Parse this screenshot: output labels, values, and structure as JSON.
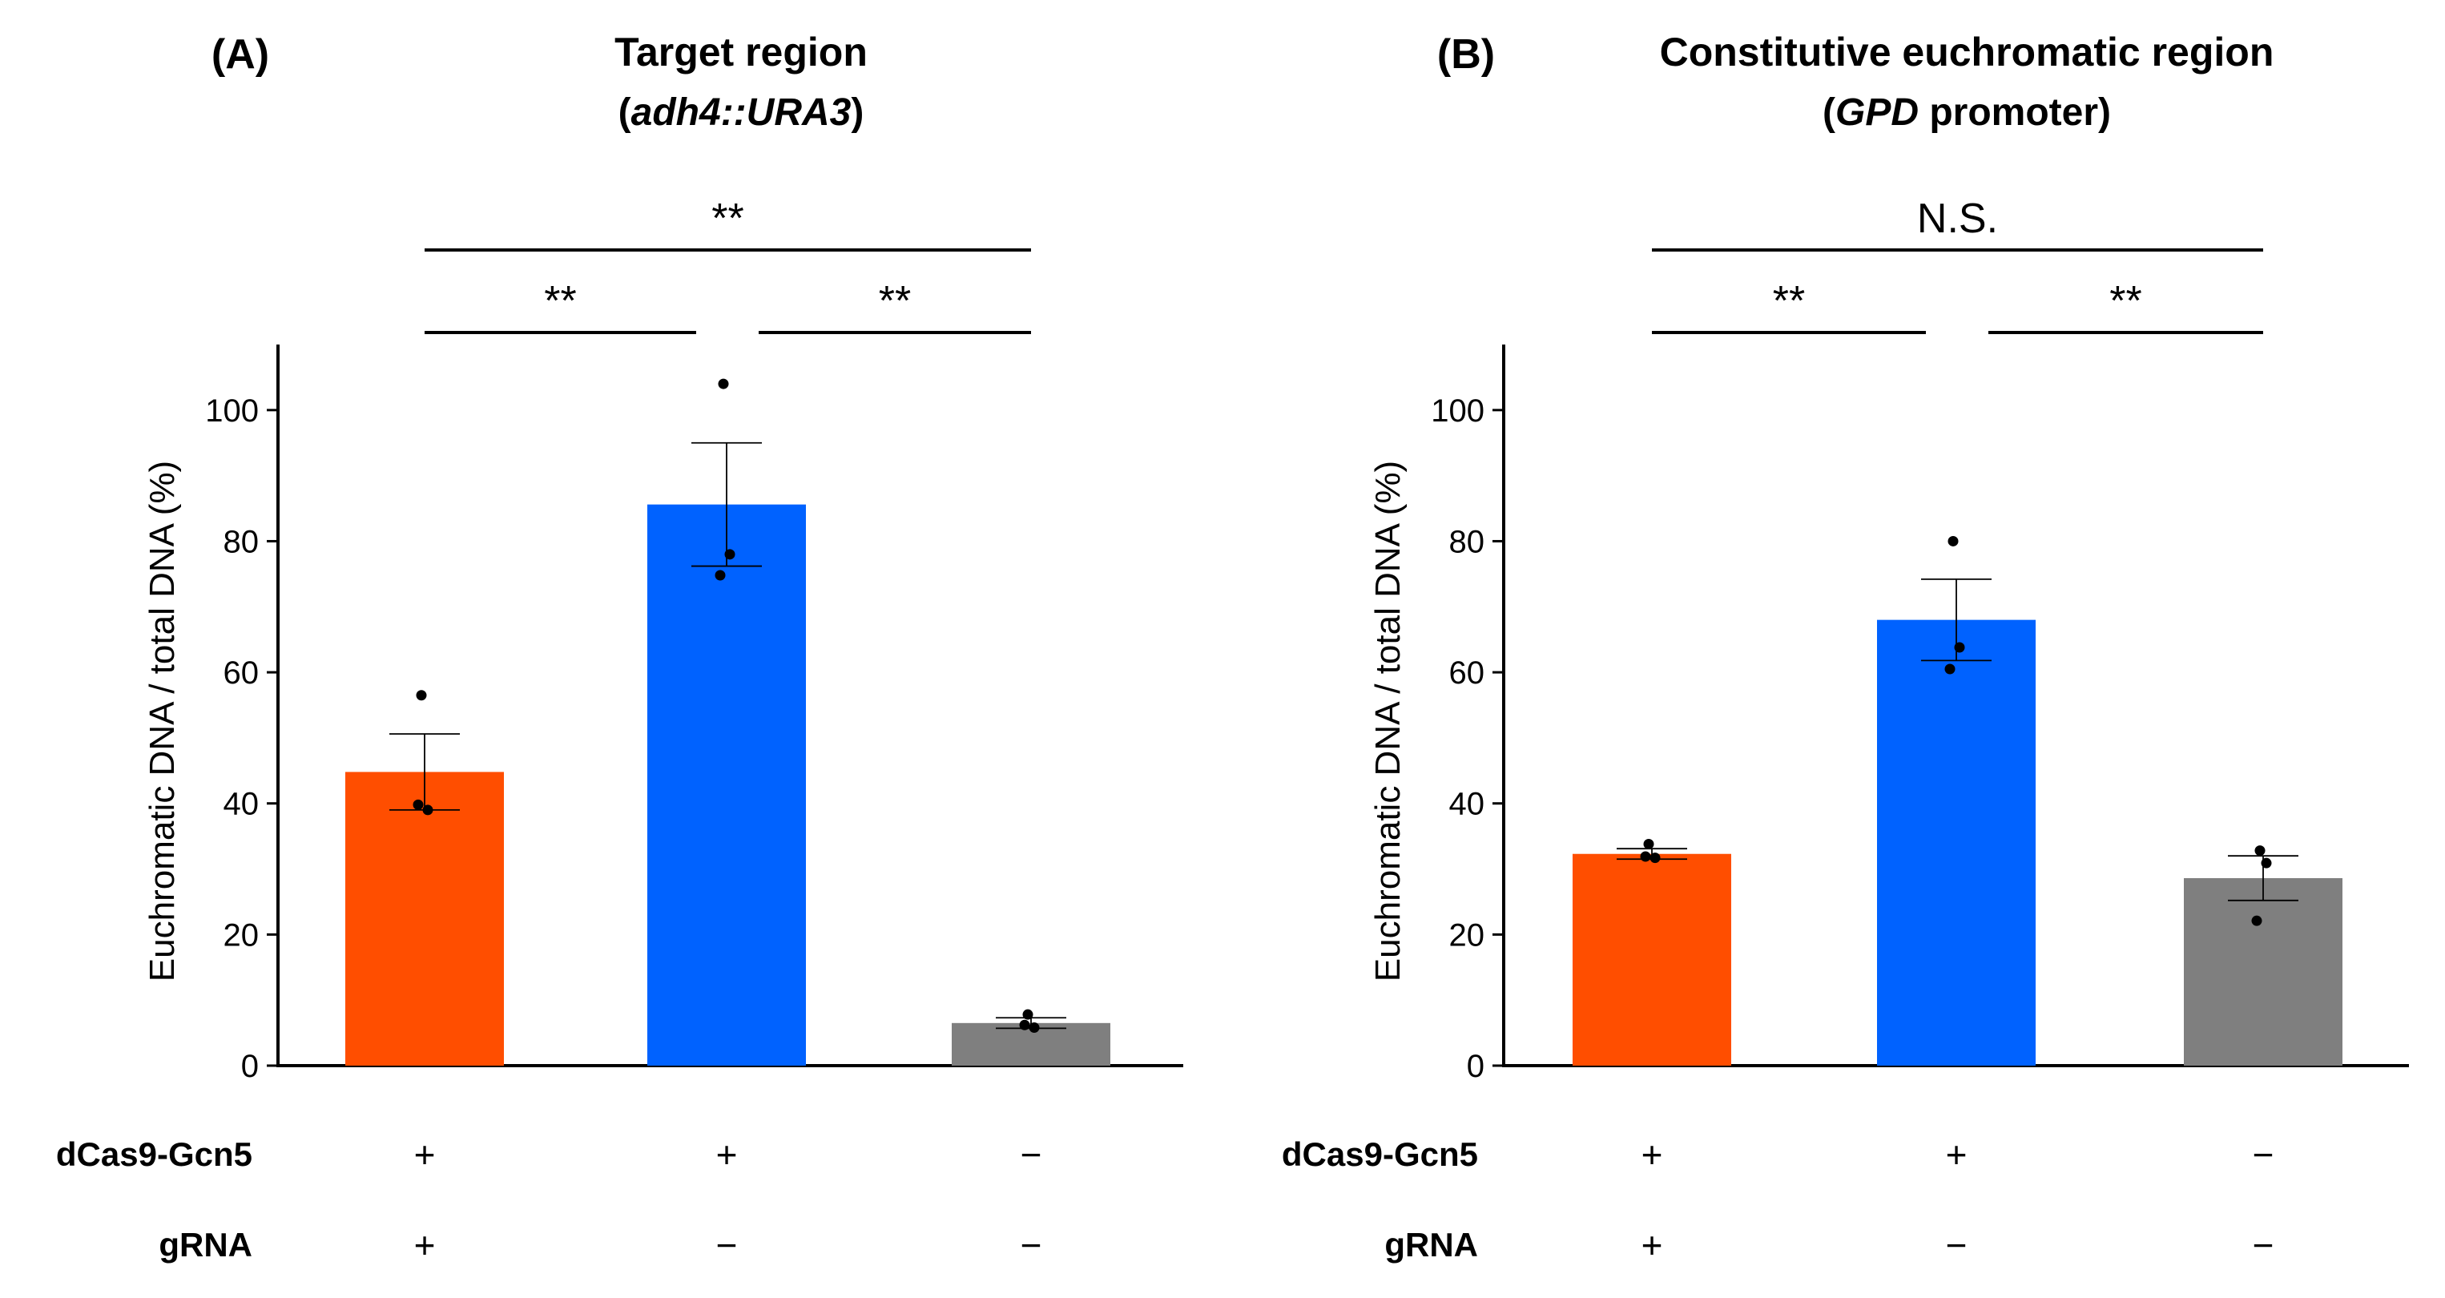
{
  "figure": {
    "background": "#ffffff",
    "colors": {
      "orange": "#ff4e00",
      "blue": "#0062ff",
      "gray": "#7f7f7f",
      "axis": "#000000",
      "error_bar": "#000000"
    }
  },
  "chart_data": [
    {
      "type": "bar",
      "panel_letter": "(A)",
      "title": "Target region",
      "subtitle_open": "(",
      "subtitle_italic": "adh4::URA3",
      "subtitle_close": ")",
      "ylabel": "Euchromatic DNA / total DNA (%)",
      "ylim": [
        0,
        110
      ],
      "yticks": [
        "0",
        "20",
        "40",
        "60",
        "80",
        "100"
      ],
      "grid": false,
      "categories": [
        "dCas9-Gcn5 + / gRNA +",
        "dCas9-Gcn5 + / gRNA −",
        "dCas9-Gcn5 − / gRNA −"
      ],
      "values": [
        44.8,
        85.6,
        6.5
      ],
      "error": [
        5.8,
        9.4,
        0.8
      ],
      "bar_colors": [
        "#ff4e00",
        "#0062ff",
        "#7f7f7f"
      ],
      "points": [
        [
          56.5,
          39.0,
          39.8
        ],
        [
          104.0,
          78.0,
          74.8
        ],
        [
          7.8,
          5.8,
          6.2
        ]
      ],
      "significance": [
        {
          "from": 0,
          "to": 1,
          "label": "**",
          "level": 1
        },
        {
          "from": 1,
          "to": 2,
          "label": "**",
          "level": 1
        },
        {
          "from": 0,
          "to": 2,
          "label": "**",
          "level": 2
        }
      ]
    },
    {
      "type": "bar",
      "panel_letter": "(B)",
      "title": "Constitutive euchromatic region",
      "subtitle_open": "(",
      "subtitle_italic": "GPD",
      "subtitle_close": " promoter)",
      "ylabel": "Euchromatic DNA / total DNA (%)",
      "ylim": [
        0,
        110
      ],
      "yticks": [
        "0",
        "20",
        "40",
        "60",
        "80",
        "100"
      ],
      "grid": false,
      "categories": [
        "dCas9-Gcn5 + / gRNA +",
        "dCas9-Gcn5 + / gRNA −",
        "dCas9-Gcn5 − / gRNA −"
      ],
      "values": [
        32.3,
        68.0,
        28.6
      ],
      "error": [
        0.8,
        6.2,
        3.4
      ],
      "bar_colors": [
        "#ff4e00",
        "#0062ff",
        "#7f7f7f"
      ],
      "points": [
        [
          33.8,
          31.7,
          31.9
        ],
        [
          80.0,
          63.8,
          60.5
        ],
        [
          32.8,
          30.9,
          22.1
        ]
      ],
      "significance": [
        {
          "from": 0,
          "to": 1,
          "label": "**",
          "level": 1
        },
        {
          "from": 1,
          "to": 2,
          "label": "**",
          "level": 1
        },
        {
          "from": 0,
          "to": 2,
          "label": "N.S.",
          "level": 2
        }
      ]
    }
  ],
  "conditions": [
    {
      "label": "dCas9-Gcn5",
      "values": [
        "+",
        "+",
        "−"
      ]
    },
    {
      "label": "gRNA",
      "values": [
        "+",
        "−",
        "−"
      ]
    }
  ]
}
